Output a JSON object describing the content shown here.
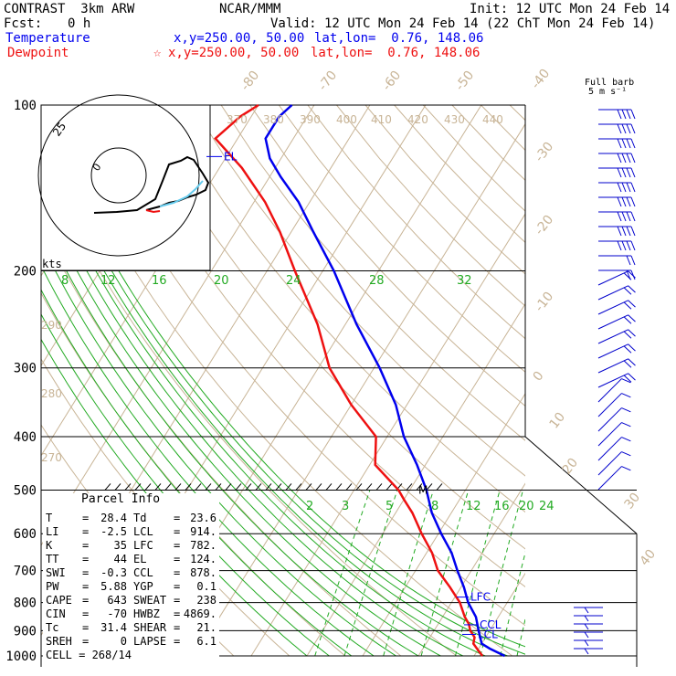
{
  "header": {
    "model": "CONTRAST  3km ARW",
    "center": "NCAR/MMM",
    "init": "Init: 12 UTC Mon 24 Feb 14",
    "fcst_label": "Fcst:",
    "fcst_value": "0 h",
    "valid": "Valid: 12 UTC Mon 24 Feb 14 (22 ChT Mon 24 Feb 14)",
    "temp_label": "Temperature",
    "temp_xy": "x,y=250.00, 50.00",
    "temp_latlon": "lat,lon=  0.76, 148.06",
    "dew_label": "Dewpoint",
    "dew_marker": "☆",
    "dew_xy": "x,y=250.00, 50.00",
    "dew_latlon": "lat,lon=  0.76, 148.06"
  },
  "colors": {
    "temperature": "#0000ee",
    "dewpoint": "#ee1111",
    "isotherm": "#c8b496",
    "mixing_ratio": "#22aa22",
    "hodo_cyan": "#66ccee",
    "wind_barb": "#0000cc"
  },
  "barb_legend": {
    "line1": "Full barb",
    "line2": "5 m s⁻¹"
  },
  "chart_data": {
    "type": "line",
    "ylabel": "",
    "y_scale": "log",
    "pressure_ticks": [
      "100",
      "200",
      "300",
      "400",
      "500",
      "600",
      "700",
      "800",
      "900",
      "1000"
    ],
    "isotherm_labels": [
      "-80",
      "-70",
      "-60",
      "-50",
      "-40",
      "-30",
      "-20",
      "-10",
      "0",
      "10",
      "20",
      "30",
      "40"
    ],
    "theta_labels": [
      "370",
      "380",
      "390",
      "400",
      "410",
      "420",
      "430",
      "440",
      "290",
      "280",
      "270"
    ],
    "mixing_ratio_labels_upper": [
      "8",
      "12",
      "16",
      "20",
      "24",
      "28",
      "32"
    ],
    "mixing_ratio_labels_lower": [
      "2",
      "3",
      "5",
      "8",
      "12",
      "16",
      "20",
      "24"
    ],
    "level_labels": [
      "EL",
      "LFC",
      "CCL",
      "LCL",
      "M"
    ],
    "series": [
      {
        "name": "Temperature",
        "points": [
          [
            1000,
            25.5
          ],
          [
            970,
            22.0
          ],
          [
            950,
            20.0
          ],
          [
            925,
            19.0
          ],
          [
            900,
            18.0
          ],
          [
            850,
            16.0
          ],
          [
            800,
            13.0
          ],
          [
            750,
            10.5
          ],
          [
            700,
            7.5
          ],
          [
            650,
            4.5
          ],
          [
            600,
            0.5
          ],
          [
            550,
            -3.5
          ],
          [
            500,
            -7.0
          ],
          [
            450,
            -11.5
          ],
          [
            400,
            -17.0
          ],
          [
            350,
            -22.0
          ],
          [
            300,
            -29.0
          ],
          [
            250,
            -38.0
          ],
          [
            200,
            -48.0
          ],
          [
            170,
            -56.0
          ],
          [
            150,
            -62.0
          ],
          [
            135,
            -68.0
          ],
          [
            125,
            -72.0
          ],
          [
            115,
            -75.0
          ],
          [
            105,
            -75.0
          ],
          [
            100,
            -74.0
          ]
        ]
      },
      {
        "name": "Dewpoint",
        "points": [
          [
            1000,
            21.5
          ],
          [
            975,
            20.0
          ],
          [
            950,
            18.5
          ],
          [
            925,
            18.0
          ],
          [
            900,
            16.5
          ],
          [
            875,
            15.5
          ],
          [
            850,
            14.0
          ],
          [
            800,
            11.5
          ],
          [
            750,
            8.0
          ],
          [
            700,
            4.0
          ],
          [
            650,
            1.0
          ],
          [
            600,
            -3.0
          ],
          [
            550,
            -7.0
          ],
          [
            520,
            -10.0
          ],
          [
            500,
            -12.0
          ],
          [
            450,
            -19.0
          ],
          [
            400,
            -22.0
          ],
          [
            350,
            -30.0
          ],
          [
            300,
            -38.0
          ],
          [
            250,
            -45.0
          ],
          [
            200,
            -55.0
          ],
          [
            170,
            -62.0
          ],
          [
            150,
            -68.0
          ],
          [
            130,
            -76.0
          ],
          [
            115,
            -84.0
          ],
          [
            105,
            -82.0
          ],
          [
            100,
            -80.0
          ]
        ]
      }
    ]
  },
  "hodograph": {
    "ring_label": "25",
    "inner_label": "0",
    "units": "kts"
  },
  "parcel_info": {
    "title": "Parcel Info",
    "rows": [
      {
        "k1": "T",
        "v1": "28.4",
        "k2": "Td",
        "v2": "23.6"
      },
      {
        "k1": "LI",
        "v1": "-2.5",
        "k2": "LCL",
        "v2": "914."
      },
      {
        "k1": "K",
        "v1": "35",
        "k2": "LFC",
        "v2": "782."
      },
      {
        "k1": "TT",
        "v1": "44",
        "k2": "EL",
        "v2": "124."
      },
      {
        "k1": "SWI",
        "v1": "-0.3",
        "k2": "CCL",
        "v2": "878."
      },
      {
        "k1": "PW",
        "v1": "5.88",
        "k2": "YGP",
        "v2": "0.1"
      },
      {
        "k1": "CAPE",
        "v1": "643",
        "k2": "SWEAT",
        "v2": "238"
      },
      {
        "k1": "CIN",
        "v1": "-70",
        "k2": "HWBZ",
        "v2": "4869."
      },
      {
        "k1": "Tc",
        "v1": "31.4",
        "k2": "SHEAR",
        "v2": "21."
      },
      {
        "k1": "SREH",
        "v1": "0",
        "k2": "LAPSE",
        "v2": "6.1"
      }
    ],
    "cell": "CELL = 268/14"
  }
}
